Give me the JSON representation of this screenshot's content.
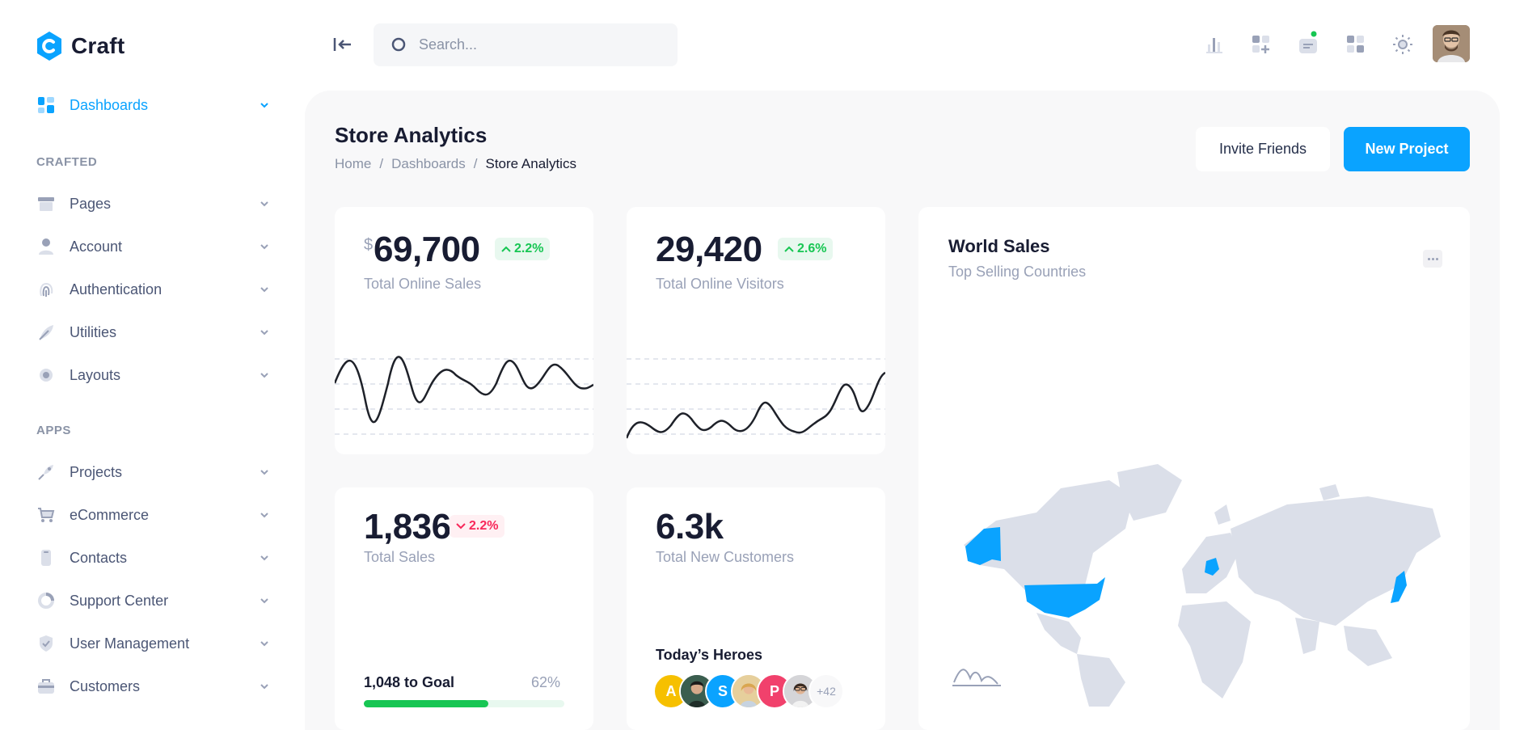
{
  "app": {
    "name": "Craft"
  },
  "sidebar": {
    "sections": [
      {
        "label": "CRAFTED"
      },
      {
        "label": "APPS"
      }
    ],
    "items": [
      {
        "label": "Dashboards",
        "icon": "dashboard-icon",
        "active": true
      },
      {
        "label": "Pages",
        "icon": "pages-icon"
      },
      {
        "label": "Account",
        "icon": "user-icon"
      },
      {
        "label": "Authentication",
        "icon": "fingerprint-icon"
      },
      {
        "label": "Utilities",
        "icon": "feather-icon"
      },
      {
        "label": "Layouts",
        "icon": "gear-icon"
      },
      {
        "label": "Projects",
        "icon": "rocket-icon"
      },
      {
        "label": "eCommerce",
        "icon": "cart-icon"
      },
      {
        "label": "Contacts",
        "icon": "phone-icon"
      },
      {
        "label": "Support Center",
        "icon": "lifebuoy-icon"
      },
      {
        "label": "User Management",
        "icon": "shield-icon"
      },
      {
        "label": "Customers",
        "icon": "briefcase-icon"
      }
    ]
  },
  "topbar": {
    "search_placeholder": "Search...",
    "icons": [
      "chart-icon",
      "grid-plus-icon",
      "chat-icon",
      "apps-icon",
      "sun-icon"
    ]
  },
  "page": {
    "title": "Store Analytics",
    "breadcrumb": [
      "Home",
      "Dashboards",
      "Store Analytics"
    ],
    "breadcrumb_sep": "/",
    "invite_label": "Invite Friends",
    "new_project_label": "New Project"
  },
  "cards": {
    "online_sales": {
      "currency": "$",
      "value": "69,700",
      "change": "2.2%",
      "label": "Total Online Sales"
    },
    "online_visitors": {
      "value": "29,420",
      "change": "2.6%",
      "label": "Total Online Visitors"
    },
    "total_sales": {
      "value": "1,836",
      "change": "2.2%",
      "label": "Total Sales",
      "goal_label": "1,048 to Goal",
      "goal_pct_label": "62%",
      "goal_progress": 0.62
    },
    "new_customers": {
      "value": "6.3k",
      "label": "Total New Customers",
      "heroes_title": "Today’s Heroes",
      "heroes": [
        "A",
        "",
        "S",
        "",
        "P",
        ""
      ],
      "heroes_more": "+42"
    },
    "world_sales": {
      "title": "World Sales",
      "subtitle": "Top Selling Countries",
      "highlighted": [
        "United States",
        "Alaska",
        "Germany",
        "Japan"
      ]
    }
  },
  "colors": {
    "accent": "#0aa3ff",
    "success": "#17c653",
    "danger": "#f8285a"
  }
}
